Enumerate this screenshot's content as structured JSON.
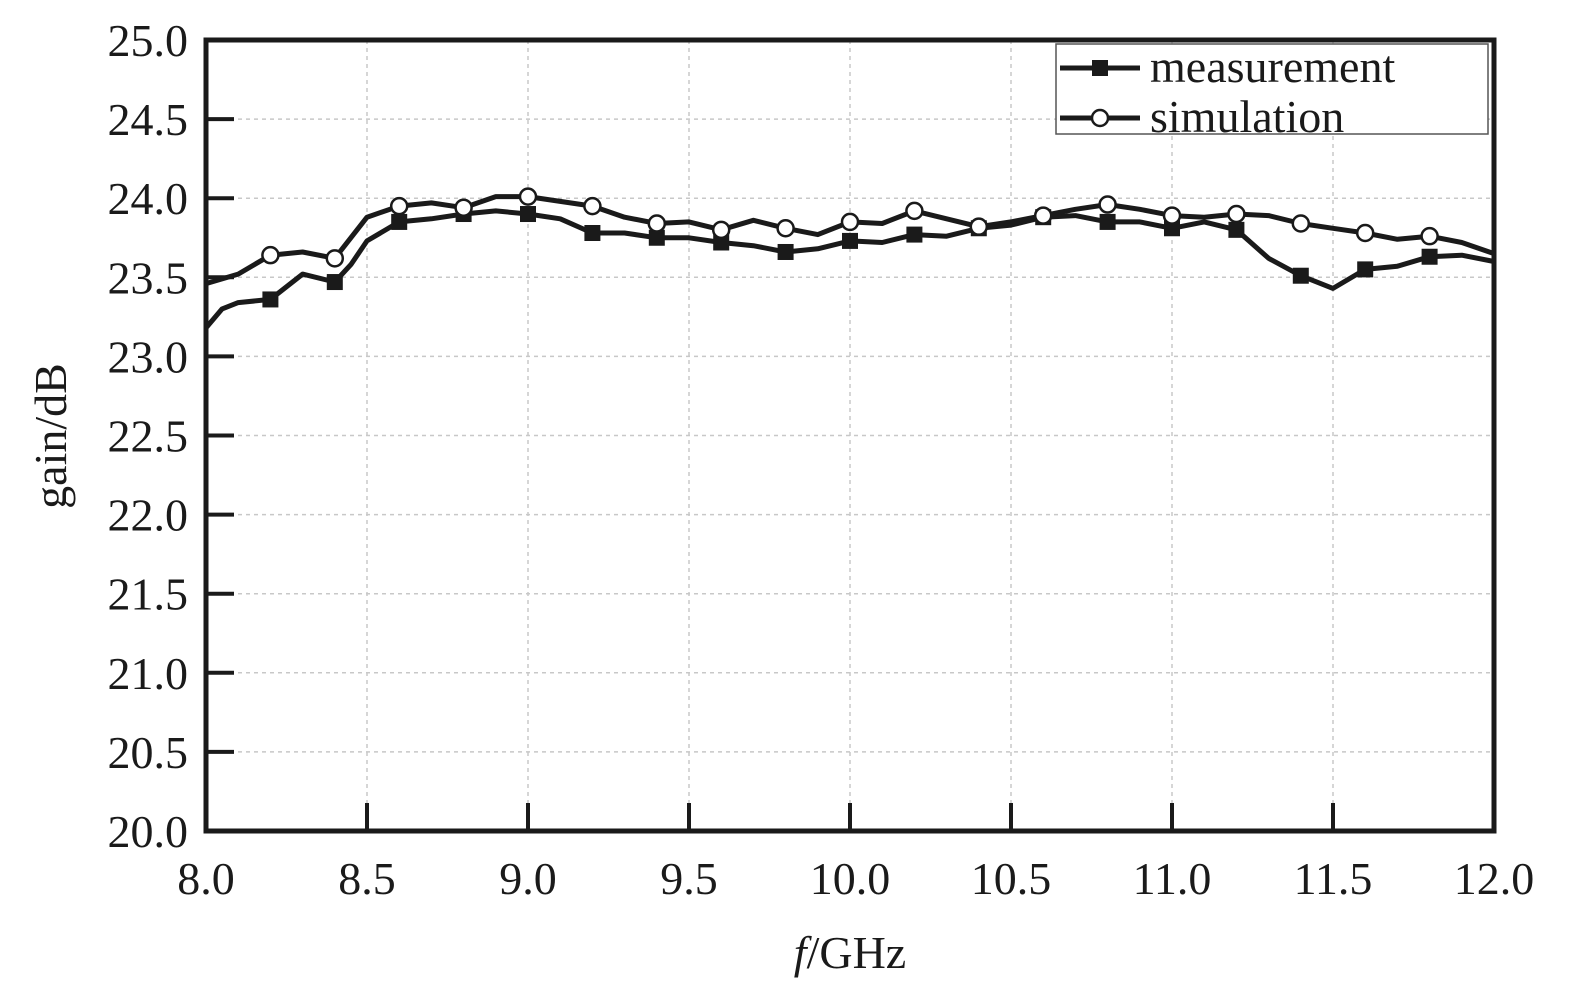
{
  "chart_data": {
    "type": "line",
    "xlabel_italic": "f",
    "xlabel_rest": "/GHz",
    "ylabel": "gain/dB",
    "xlim": [
      8.0,
      12.0
    ],
    "ylim": [
      20.0,
      25.0
    ],
    "x_ticks": [
      "8.0",
      "8.5",
      "9.0",
      "9.5",
      "10.0",
      "10.5",
      "11.0",
      "11.5",
      "12.0"
    ],
    "y_ticks": [
      "20.0",
      "20.5",
      "21.0",
      "21.5",
      "22.0",
      "22.5",
      "23.0",
      "23.5",
      "24.0",
      "24.5",
      "25.0"
    ],
    "grid": true,
    "legend_position": "top-right",
    "series": [
      {
        "name": "measurement",
        "marker": "filled-square",
        "color": "#1a1a1a",
        "line": [
          [
            8.0,
            23.18
          ],
          [
            8.05,
            23.3
          ],
          [
            8.1,
            23.34
          ],
          [
            8.2,
            23.36
          ],
          [
            8.3,
            23.52
          ],
          [
            8.4,
            23.47
          ],
          [
            8.45,
            23.58
          ],
          [
            8.5,
            23.73
          ],
          [
            8.6,
            23.85
          ],
          [
            8.7,
            23.87
          ],
          [
            8.8,
            23.9
          ],
          [
            8.9,
            23.92
          ],
          [
            9.0,
            23.9
          ],
          [
            9.1,
            23.87
          ],
          [
            9.2,
            23.78
          ],
          [
            9.3,
            23.78
          ],
          [
            9.4,
            23.75
          ],
          [
            9.5,
            23.75
          ],
          [
            9.6,
            23.72
          ],
          [
            9.7,
            23.7
          ],
          [
            9.8,
            23.66
          ],
          [
            9.9,
            23.68
          ],
          [
            10.0,
            23.73
          ],
          [
            10.1,
            23.72
          ],
          [
            10.2,
            23.77
          ],
          [
            10.3,
            23.76
          ],
          [
            10.4,
            23.81
          ],
          [
            10.5,
            23.83
          ],
          [
            10.6,
            23.88
          ],
          [
            10.7,
            23.89
          ],
          [
            10.8,
            23.85
          ],
          [
            10.9,
            23.85
          ],
          [
            11.0,
            23.81
          ],
          [
            11.1,
            23.85
          ],
          [
            11.2,
            23.8
          ],
          [
            11.3,
            23.62
          ],
          [
            11.4,
            23.51
          ],
          [
            11.5,
            23.43
          ],
          [
            11.6,
            23.55
          ],
          [
            11.7,
            23.57
          ],
          [
            11.8,
            23.63
          ],
          [
            11.9,
            23.64
          ],
          [
            12.0,
            23.6
          ]
        ],
        "markers": [
          [
            8.2,
            23.36
          ],
          [
            8.4,
            23.47
          ],
          [
            8.6,
            23.85
          ],
          [
            8.8,
            23.9
          ],
          [
            9.0,
            23.9
          ],
          [
            9.2,
            23.78
          ],
          [
            9.4,
            23.75
          ],
          [
            9.6,
            23.72
          ],
          [
            9.8,
            23.66
          ],
          [
            10.0,
            23.73
          ],
          [
            10.2,
            23.77
          ],
          [
            10.4,
            23.81
          ],
          [
            10.6,
            23.88
          ],
          [
            10.8,
            23.85
          ],
          [
            11.0,
            23.81
          ],
          [
            11.2,
            23.8
          ],
          [
            11.4,
            23.51
          ],
          [
            11.6,
            23.55
          ],
          [
            11.8,
            23.63
          ]
        ]
      },
      {
        "name": "simulation",
        "marker": "hollow-circle",
        "color": "#1a1a1a",
        "line": [
          [
            8.0,
            23.46
          ],
          [
            8.1,
            23.52
          ],
          [
            8.2,
            23.64
          ],
          [
            8.3,
            23.66
          ],
          [
            8.4,
            23.62
          ],
          [
            8.5,
            23.88
          ],
          [
            8.6,
            23.95
          ],
          [
            8.7,
            23.97
          ],
          [
            8.8,
            23.94
          ],
          [
            8.9,
            24.01
          ],
          [
            9.0,
            24.01
          ],
          [
            9.1,
            23.98
          ],
          [
            9.2,
            23.95
          ],
          [
            9.3,
            23.88
          ],
          [
            9.4,
            23.84
          ],
          [
            9.5,
            23.85
          ],
          [
            9.6,
            23.8
          ],
          [
            9.7,
            23.86
          ],
          [
            9.8,
            23.81
          ],
          [
            9.9,
            23.77
          ],
          [
            10.0,
            23.85
          ],
          [
            10.1,
            23.84
          ],
          [
            10.2,
            23.92
          ],
          [
            10.3,
            23.87
          ],
          [
            10.4,
            23.82
          ],
          [
            10.5,
            23.85
          ],
          [
            10.6,
            23.89
          ],
          [
            10.7,
            23.93
          ],
          [
            10.8,
            23.96
          ],
          [
            10.9,
            23.93
          ],
          [
            11.0,
            23.89
          ],
          [
            11.1,
            23.88
          ],
          [
            11.2,
            23.9
          ],
          [
            11.3,
            23.89
          ],
          [
            11.4,
            23.84
          ],
          [
            11.5,
            23.81
          ],
          [
            11.6,
            23.78
          ],
          [
            11.7,
            23.74
          ],
          [
            11.8,
            23.76
          ],
          [
            11.9,
            23.72
          ],
          [
            12.0,
            23.65
          ]
        ],
        "markers": [
          [
            8.2,
            23.64
          ],
          [
            8.4,
            23.62
          ],
          [
            8.6,
            23.95
          ],
          [
            8.8,
            23.94
          ],
          [
            9.0,
            24.01
          ],
          [
            9.2,
            23.95
          ],
          [
            9.4,
            23.84
          ],
          [
            9.6,
            23.8
          ],
          [
            9.8,
            23.81
          ],
          [
            10.0,
            23.85
          ],
          [
            10.2,
            23.92
          ],
          [
            10.4,
            23.82
          ],
          [
            10.6,
            23.89
          ],
          [
            10.8,
            23.96
          ],
          [
            11.0,
            23.89
          ],
          [
            11.2,
            23.9
          ],
          [
            11.4,
            23.84
          ],
          [
            11.6,
            23.78
          ],
          [
            11.8,
            23.76
          ]
        ]
      }
    ]
  }
}
